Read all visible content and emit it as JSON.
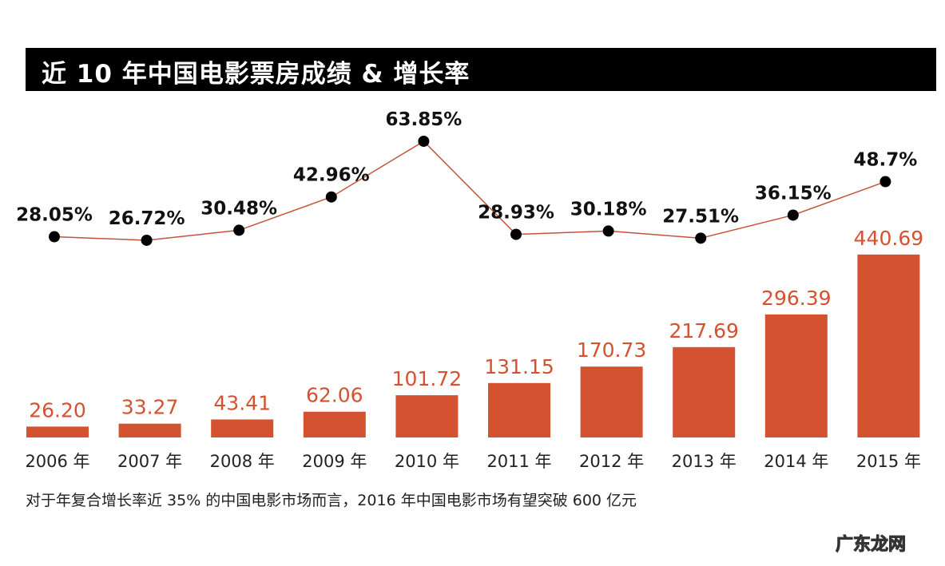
{
  "title": "近 10 年中国电影票房成绩 & 增长率",
  "footnote": "对于年复合增长率近 35% 的中国电影市场而言，2016 年中国电影市场有望突破 600 亿元",
  "watermark": "广东龙网",
  "colors": {
    "bar": "#d4522f",
    "bar_label": "#d4522f",
    "line": "#c4533c",
    "point": "#000000",
    "title_bg": "#000000"
  },
  "chart_data": {
    "type": "bar+line",
    "title": "近 10 年中国电影票房成绩 & 增长率",
    "categories": [
      "2006 年",
      "2007 年",
      "2008 年",
      "2009 年",
      "2010 年",
      "2011 年",
      "2012 年",
      "2013 年",
      "2014 年",
      "2015 年"
    ],
    "series": [
      {
        "type": "bar",
        "values": [
          26.2,
          33.27,
          43.41,
          62.06,
          101.72,
          131.15,
          170.73,
          217.69,
          296.39,
          440.69
        ],
        "labels": [
          "26.20",
          "33.27",
          "43.41",
          "62.06",
          "101.72",
          "131.15",
          "170.73",
          "217.69",
          "296.39",
          "440.69"
        ]
      },
      {
        "type": "line",
        "values": [
          28.05,
          26.72,
          30.48,
          42.96,
          63.85,
          28.93,
          30.18,
          27.51,
          36.15,
          48.7
        ],
        "labels": [
          "28.05%",
          "26.72%",
          "30.48%",
          "42.96%",
          "63.85%",
          "28.93%",
          "30.18%",
          "27.51%",
          "36.15%",
          "48.7%"
        ]
      }
    ],
    "grid": false,
    "legend": "none"
  }
}
